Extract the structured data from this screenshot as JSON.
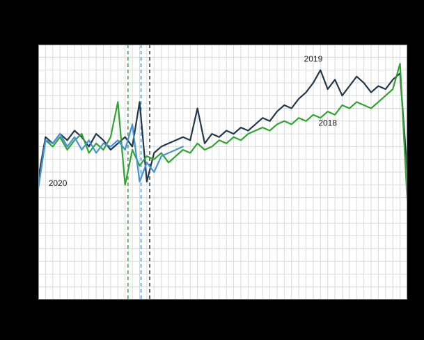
{
  "figure": {
    "background_color": "#000000",
    "plot_background_color": "#ffffff",
    "grid_color": "#d9d9d9",
    "frame_color": "#8c8c8c"
  },
  "chart_data": {
    "type": "line",
    "x_unit": "week",
    "x_range": [
      1,
      52
    ],
    "ylim": [
      50,
      130
    ],
    "grid": {
      "vertical_step_weeks": 1,
      "horizontal_step_value": 4,
      "enabled": true
    },
    "legend_position": "inline-annotations",
    "series": [
      {
        "name": "2019",
        "color": "#22384a",
        "values": [
          88,
          101,
          99,
          102,
          100,
          103,
          101,
          98,
          102,
          100,
          97,
          99,
          101,
          98,
          112,
          87,
          96,
          98,
          99,
          100,
          101,
          100,
          110,
          99,
          102,
          101,
          103,
          102,
          104,
          103,
          105,
          107,
          106,
          109,
          111,
          110,
          113,
          115,
          118,
          122,
          116,
          119,
          114,
          117,
          120,
          118,
          115,
          117,
          116,
          119,
          121,
          90
        ]
      },
      {
        "name": "2018",
        "color": "#2fa52f",
        "values": [
          85,
          100,
          98,
          101,
          97,
          100,
          102,
          96,
          99,
          97,
          101,
          112,
          86,
          97,
          92,
          95,
          94,
          96,
          93,
          95,
          97,
          96,
          99,
          97,
          98,
          100,
          99,
          101,
          100,
          102,
          103,
          104,
          103,
          105,
          106,
          105,
          107,
          106,
          108,
          107,
          109,
          108,
          111,
          110,
          112,
          111,
          110,
          112,
          114,
          116,
          124,
          81
        ]
      },
      {
        "name": "2020",
        "color": "#4493d9",
        "values": [
          85,
          100,
          99,
          102,
          98,
          101,
          97,
          100,
          96,
          99,
          98,
          100,
          97,
          105,
          87,
          93,
          90,
          95,
          96,
          97,
          98
        ]
      }
    ],
    "markers": [
      {
        "name": "dashed-marker-2018",
        "week": 13.4,
        "color": "#2fa52f",
        "style": "dashed"
      },
      {
        "name": "dashed-marker-2020",
        "week": 15.2,
        "color": "#4493d9",
        "style": "dashed"
      },
      {
        "name": "dashed-marker-2019",
        "week": 16.4,
        "color": "#2b2b2b",
        "style": "dashed"
      }
    ],
    "annotations": [
      {
        "text": "2019",
        "week": 39.0,
        "value": 125.3
      },
      {
        "text": "2018",
        "week": 41.0,
        "value": 105.2
      },
      {
        "text": "2020",
        "week": 3.7,
        "value": 86.3
      }
    ]
  }
}
